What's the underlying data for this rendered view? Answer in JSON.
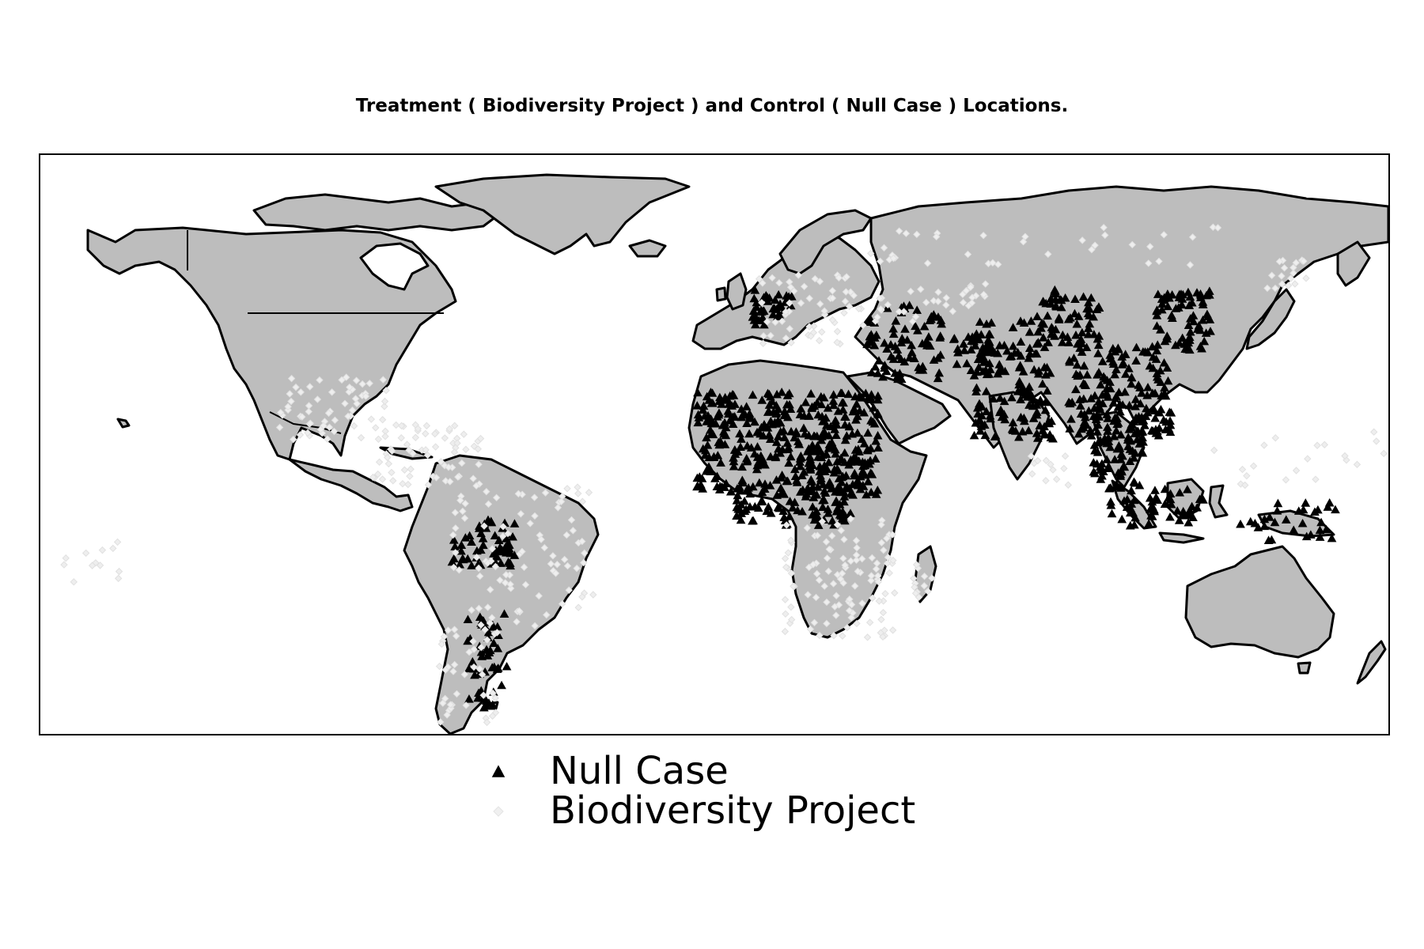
{
  "title": "Treatment ( Biodiversity Project ) and Control ( Null Case ) Locations.",
  "legend": {
    "null_case": {
      "label": "Null Case",
      "marker": "triangle",
      "fill": "#000000"
    },
    "biodiversity": {
      "label": "Biodiversity Project",
      "marker": "diamond",
      "fill": "#f0f0f0"
    }
  },
  "colors": {
    "land": "#bdbdbd",
    "coastline": "#000000",
    "ocean": "#ffffff",
    "null_case_fill": "#000000",
    "biodiversity_fill": "#eeeeee"
  },
  "map": {
    "projection": "plate carree (equirectangular)",
    "extent": {
      "lon": [
        -180,
        180
      ],
      "lat": [
        -60,
        85
      ]
    }
  }
}
